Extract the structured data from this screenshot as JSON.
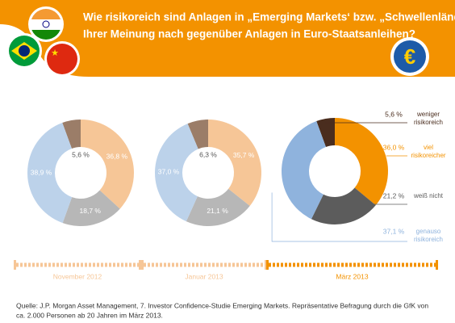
{
  "header": {
    "title_lines": [
      "Wie risikoreich sind Anlagen in „Emerging Markets‘ bzw. „Schwellenländer“",
      "Ihrer Meinung nach gegenüber Anlagen in Euro-Staatsanleihen?"
    ],
    "icon": "€"
  },
  "chart_data": [
    {
      "type": "pie",
      "title": "November 2012",
      "values": [
        5.6,
        36.8,
        18.7,
        38.9
      ],
      "value_labels": [
        "5,6 %",
        "36,8 %",
        "18,7 %",
        "38,9 %"
      ],
      "colors": [
        "#9b7d68",
        "#f6c697",
        "#b7b7b7",
        "#bcd2ea"
      ]
    },
    {
      "type": "pie",
      "title": "Januar 2013",
      "values": [
        6.3,
        35.7,
        21.1,
        37.0
      ],
      "value_labels": [
        "6,3 %",
        "35,7 %",
        "21,1 %",
        "37,0 %"
      ],
      "colors": [
        "#9b7d68",
        "#f6c697",
        "#b7b7b7",
        "#bcd2ea"
      ]
    },
    {
      "type": "pie",
      "title": "März 2013",
      "categories": [
        "weniger risikoreich",
        "viel risikoreicher",
        "weiß nicht",
        "genauso risikoreich"
      ],
      "values": [
        5.6,
        36.0,
        21.2,
        37.1
      ],
      "value_labels": [
        "5,6 %",
        "36,0 %",
        "21,2 %",
        "37,1 %"
      ],
      "colors": [
        "#4a2d1e",
        "#f39200",
        "#5c5c5c",
        "#8fb3dd"
      ]
    }
  ],
  "footer": {
    "source_lines": [
      "Quelle: J.P. Morgan Asset Management, 7. Investor Confidence-Studie Emerging Markets. Repräsentative Befragung durch die GfK von",
      "ca. 2.000 Personen ab 20 Jahren im März 2013."
    ]
  }
}
